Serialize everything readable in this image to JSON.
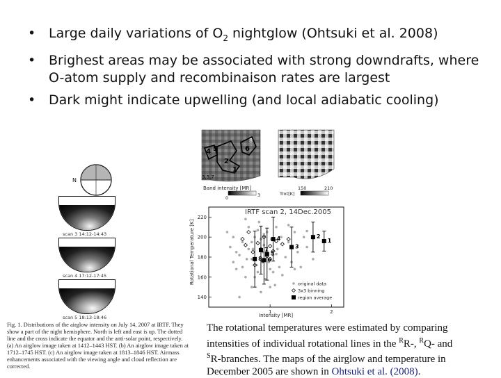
{
  "slide": {
    "bullets": [
      {
        "pre": "Large daily variations of O",
        "sub": "2",
        "post": " nightglow (Ohtsuki et al. 2008)"
      },
      {
        "text": "Brighest areas may be associated with strong downdrafts, where O-atom supply and recombinaison rates are largest"
      },
      {
        "text": "Dark might indicate upwelling (and local adiabatic cooling)"
      }
    ]
  },
  "fig_left": {
    "north_label": "N",
    "scans": [
      {
        "label": "scan 3   14:12-14:43"
      },
      {
        "label": "scan 4   17:12-17:45"
      },
      {
        "label": "scan 5   18:13-18:46"
      }
    ],
    "caption": "Fig. 1. Distributions of the airglow intensity on July 14, 2007 at IRTF. They show a part of the night hemisphere. North is left and east is up. The dotted line and the cross indicate the equator and the anti-solar point, respectively. (a) An airglow image taken at 1412–1443 HST. (b) An airglow image taken at 1712–1745 HST. (c) An airglow image taken at 1813–1846 HST. Airmass enhancements associated with the viewing angle and cloud reflection are corrected."
  },
  "fig_right": {
    "map_left": {
      "region_labels": [
        "8",
        "4",
        "5",
        "6",
        "2",
        "1",
        "3,5,7"
      ],
      "colorbar_title": "Band intensity [MR]",
      "colorbar_min": "0",
      "colorbar_max": "3"
    },
    "map_right": {
      "colorbar_title": "Trot[K]",
      "colorbar_min": "150",
      "colorbar_max": "210"
    }
  },
  "chart_data": {
    "type": "scatter",
    "title": "IRTF scan 2, 14Dec.2005",
    "xlabel": "Intensity [MR]",
    "ylabel": "Rotational Temperature [K]",
    "xlim": [
      0,
      2.2
    ],
    "ylim": [
      130,
      230
    ],
    "xticks": [
      "1",
      "2"
    ],
    "yticks": [
      "140",
      "160",
      "180",
      "200",
      "220"
    ],
    "grid": false,
    "legend_position": "bottom-right",
    "series": [
      {
        "name": "original data",
        "points": [
          [
            0.3,
            205
          ],
          [
            0.35,
            190
          ],
          [
            0.4,
            175
          ],
          [
            0.45,
            168
          ],
          [
            0.5,
            182
          ],
          [
            0.55,
            195
          ],
          [
            0.6,
            160
          ],
          [
            0.62,
            178
          ],
          [
            0.65,
            210
          ],
          [
            0.7,
            150
          ],
          [
            0.72,
            188
          ],
          [
            0.75,
            200
          ],
          [
            0.78,
            172
          ],
          [
            0.8,
            165
          ],
          [
            0.82,
            215
          ],
          [
            0.85,
            145
          ],
          [
            0.88,
            185
          ],
          [
            0.9,
            192
          ],
          [
            0.92,
            158
          ],
          [
            0.95,
            205
          ],
          [
            0.98,
            175
          ],
          [
            1.0,
            168
          ],
          [
            1.02,
            198
          ],
          [
            1.05,
            182
          ],
          [
            1.08,
            152
          ],
          [
            1.1,
            210
          ],
          [
            1.12,
            188
          ],
          [
            1.15,
            170
          ],
          [
            1.18,
            200
          ],
          [
            1.2,
            162
          ],
          [
            1.25,
            180
          ],
          [
            1.3,
            195
          ],
          [
            1.35,
            175
          ],
          [
            1.4,
            205
          ],
          [
            1.45,
            185
          ],
          [
            1.5,
            170
          ],
          [
            1.55,
            200
          ],
          [
            1.6,
            190
          ],
          [
            1.7,
            178
          ],
          [
            0.5,
            140
          ],
          [
            0.6,
            218
          ],
          [
            0.7,
            195
          ],
          [
            0.8,
            207
          ],
          [
            0.9,
            176
          ],
          [
            1.0,
            150
          ],
          [
            1.1,
            183
          ],
          [
            1.3,
            212
          ],
          [
            0.4,
            200
          ],
          [
            0.55,
            170
          ],
          [
            0.65,
            188
          ],
          [
            0.75,
            160
          ],
          [
            0.85,
            198
          ],
          [
            0.95,
            186
          ],
          [
            1.05,
            165
          ],
          [
            1.2,
            193
          ],
          [
            1.4,
            168
          ],
          [
            1.6,
            206
          ],
          [
            0.45,
            185
          ],
          [
            0.7,
            178
          ],
          [
            0.9,
            203
          ]
        ]
      },
      {
        "name": "3x3 binning",
        "points": [
          [
            0.55,
            198
          ],
          [
            0.6,
            192
          ],
          [
            0.65,
            205
          ],
          [
            0.72,
            185
          ],
          [
            0.8,
            194
          ],
          [
            0.85,
            188
          ],
          [
            0.9,
            200
          ],
          [
            0.95,
            181
          ],
          [
            1.0,
            191
          ],
          [
            1.05,
            186
          ],
          [
            1.1,
            196
          ],
          [
            1.2,
            193
          ],
          [
            1.3,
            198
          ],
          [
            0.75,
            172
          ],
          [
            0.88,
            176
          ],
          [
            1.0,
            178
          ]
        ]
      },
      {
        "name": "region average",
        "points": [
          {
            "label": "1",
            "x": 1.88,
            "y": 196,
            "err": 10
          },
          {
            "label": "2",
            "x": 1.7,
            "y": 200,
            "err": 15
          },
          {
            "label": "3",
            "x": 1.35,
            "y": 190,
            "err": 20
          },
          {
            "label": "4",
            "x": 1.05,
            "y": 198,
            "err": 22
          },
          {
            "label": "5",
            "x": 0.95,
            "y": 183,
            "err": 26
          },
          {
            "label": "6",
            "x": 0.9,
            "y": 177,
            "err": 24
          },
          {
            "label": "7",
            "x": 0.85,
            "y": 187,
            "err": 24
          },
          {
            "label": "8",
            "x": 0.75,
            "y": 178,
            "err": 28
          }
        ]
      }
    ]
  },
  "caption_right": {
    "p1": "The rotational temperatures were estimated by comparing intensities of individual rotational lines in the ",
    "sup1": "R",
    "p2": "R-, ",
    "sup2": "R",
    "p3": "Q- and ",
    "sup3": "S",
    "p4": "R-branches. The maps of the airglow and temperature in December 2005 are shown in ",
    "ref": "Ohtsuki et al. (2008)",
    "p5": "."
  },
  "colors": {
    "text": "#111111",
    "link": "#1a237e",
    "gray_points": "#aaaaaa"
  }
}
